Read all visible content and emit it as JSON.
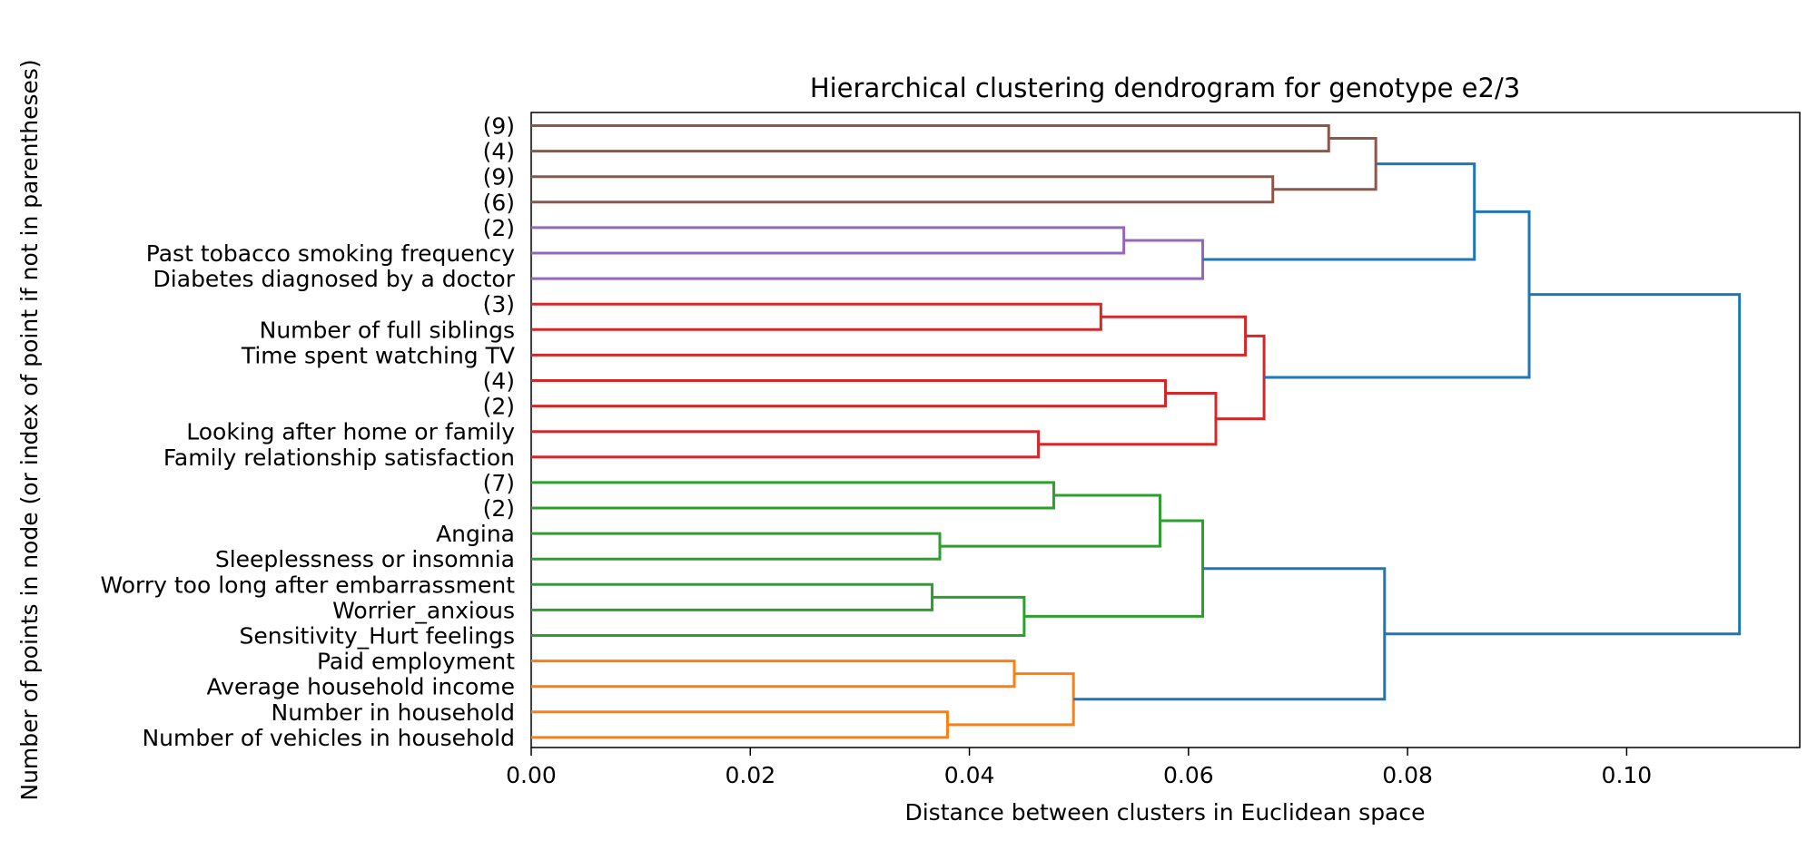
{
  "chart_data": {
    "type": "dendrogram",
    "orientation": "horizontal",
    "title": "Hierarchical clustering dendrogram for genotype e2/3",
    "xlabel": "Distance between clusters in Euclidean space",
    "ylabel": "Number of points in node (or index of point if not in parentheses)",
    "xlim": [
      0,
      0.1158
    ],
    "xticks": [
      {
        "value": 0.0,
        "label": "0.00"
      },
      {
        "value": 0.02,
        "label": "0.02"
      },
      {
        "value": 0.04,
        "label": "0.04"
      },
      {
        "value": 0.06,
        "label": "0.06"
      },
      {
        "value": 0.08,
        "label": "0.08"
      },
      {
        "value": 0.1,
        "label": "0.10"
      }
    ],
    "leaves": [
      "(9)",
      "(4)",
      "(9)",
      "(6)",
      "(2)",
      "Past tobacco smoking frequency",
      "Diabetes diagnosed by a doctor",
      "(3)",
      "Number of full siblings",
      "Time spent watching TV",
      "(4)",
      "(2)",
      "Looking after home or family",
      "Family relationship satisfaction",
      "(7)",
      "(2)",
      "Angina",
      "Sleeplessness or insomnia",
      "Worry too long after embarrassment",
      "Worrier_anxious",
      "Sensitivity_Hurt feelings",
      "Paid employment",
      "Average household income",
      "Number in household",
      "Number of vehicles in household"
    ],
    "links": [
      {
        "a": {
          "leaf": 0
        },
        "b": {
          "leaf": 1
        },
        "dist": 0.0728,
        "color": "#8c564b"
      },
      {
        "a": {
          "leaf": 2
        },
        "b": {
          "leaf": 3
        },
        "dist": 0.0677,
        "color": "#8c564b"
      },
      {
        "a": {
          "link": 0
        },
        "b": {
          "link": 1
        },
        "dist": 0.0771,
        "color": "#8c564b"
      },
      {
        "a": {
          "leaf": 4
        },
        "b": {
          "leaf": 5
        },
        "dist": 0.0541,
        "color": "#9467bd"
      },
      {
        "a": {
          "link": 3
        },
        "b": {
          "leaf": 6
        },
        "dist": 0.0613,
        "color": "#9467bd"
      },
      {
        "a": {
          "link": 2
        },
        "b": {
          "link": 4
        },
        "dist": 0.0861,
        "color": "#1f77b4"
      },
      {
        "a": {
          "leaf": 7
        },
        "b": {
          "leaf": 8
        },
        "dist": 0.052,
        "color": "#d62728"
      },
      {
        "a": {
          "link": 6
        },
        "b": {
          "leaf": 9
        },
        "dist": 0.0652,
        "color": "#d62728"
      },
      {
        "a": {
          "leaf": 10
        },
        "b": {
          "leaf": 11
        },
        "dist": 0.0579,
        "color": "#d62728"
      },
      {
        "a": {
          "leaf": 12
        },
        "b": {
          "leaf": 13
        },
        "dist": 0.0463,
        "color": "#d62728"
      },
      {
        "a": {
          "link": 8
        },
        "b": {
          "link": 9
        },
        "dist": 0.0625,
        "color": "#d62728"
      },
      {
        "a": {
          "link": 7
        },
        "b": {
          "link": 10
        },
        "dist": 0.0669,
        "color": "#d62728"
      },
      {
        "a": {
          "link": 5
        },
        "b": {
          "link": 11
        },
        "dist": 0.0911,
        "color": "#1f77b4"
      },
      {
        "a": {
          "leaf": 14
        },
        "b": {
          "leaf": 15
        },
        "dist": 0.0477,
        "color": "#2ca02c"
      },
      {
        "a": {
          "leaf": 16
        },
        "b": {
          "leaf": 17
        },
        "dist": 0.0373,
        "color": "#2ca02c"
      },
      {
        "a": {
          "link": 13
        },
        "b": {
          "link": 14
        },
        "dist": 0.0574,
        "color": "#2ca02c"
      },
      {
        "a": {
          "leaf": 18
        },
        "b": {
          "leaf": 19
        },
        "dist": 0.0366,
        "color": "#2ca02c"
      },
      {
        "a": {
          "link": 16
        },
        "b": {
          "leaf": 20
        },
        "dist": 0.045,
        "color": "#2ca02c"
      },
      {
        "a": {
          "link": 15
        },
        "b": {
          "link": 17
        },
        "dist": 0.0613,
        "color": "#2ca02c"
      },
      {
        "a": {
          "leaf": 21
        },
        "b": {
          "leaf": 22
        },
        "dist": 0.0441,
        "color": "#ff7f0e"
      },
      {
        "a": {
          "leaf": 23
        },
        "b": {
          "leaf": 24
        },
        "dist": 0.038,
        "color": "#ff7f0e"
      },
      {
        "a": {
          "link": 19
        },
        "b": {
          "link": 20
        },
        "dist": 0.0495,
        "color": "#ff7f0e"
      },
      {
        "a": {
          "link": 18
        },
        "b": {
          "link": 21
        },
        "dist": 0.0779,
        "color": "#1f77b4"
      },
      {
        "a": {
          "link": 12
        },
        "b": {
          "link": 22
        },
        "dist": 0.1103,
        "color": "#1f77b4"
      }
    ],
    "grid": false,
    "legend": "none"
  }
}
